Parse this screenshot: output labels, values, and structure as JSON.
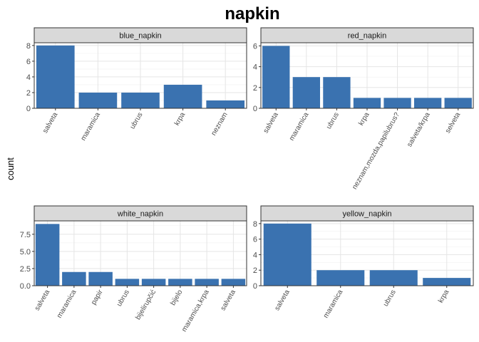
{
  "title": "napkin",
  "ylabel": "count",
  "bar_color": "#3a72b0",
  "chart_data": [
    {
      "type": "bar",
      "title": "blue_napkin",
      "categories": [
        "salveta",
        "maramica",
        "ubrus",
        "krpa",
        "neznam"
      ],
      "values": [
        8,
        2,
        2,
        3,
        1
      ],
      "ylim": [
        0,
        8.35
      ],
      "yticks": [
        0,
        2,
        4,
        6,
        8
      ],
      "ytick_labels": [
        "0",
        "2",
        "4",
        "6",
        "8"
      ]
    },
    {
      "type": "bar",
      "title": "red_napkin",
      "categories": [
        "salveta",
        "maramica",
        "ubrus",
        "krpa",
        "neznam,mozda,papilubrus?",
        "salveta/krpa",
        "selveta"
      ],
      "values": [
        6,
        3,
        3,
        1,
        1,
        1,
        1
      ],
      "ylim": [
        0,
        6.3
      ],
      "yticks": [
        0,
        2,
        4,
        6
      ],
      "ytick_labels": [
        "0",
        "2",
        "4",
        "6"
      ]
    },
    {
      "type": "bar",
      "title": "white_napkin",
      "categories": [
        "salveta",
        "maramica",
        "papir",
        "ubrus",
        "bijelirupčić",
        "bijelo",
        "maramica,krpa",
        "salveta"
      ],
      "values": [
        9,
        2,
        2,
        1,
        1,
        1,
        1,
        1
      ],
      "ylim": [
        0,
        9.45
      ],
      "yticks": [
        0,
        2.5,
        5,
        7.5
      ],
      "ytick_labels": [
        "0.0",
        "2.5",
        "5.0",
        "7.5"
      ]
    },
    {
      "type": "bar",
      "title": "yellow_napkin",
      "categories": [
        "salveta",
        "maramica",
        "ubrus",
        "krpa"
      ],
      "values": [
        8,
        2,
        2,
        1
      ],
      "ylim": [
        0,
        8.35
      ],
      "yticks": [
        0,
        2,
        4,
        6,
        8
      ],
      "ytick_labels": [
        "0",
        "2",
        "4",
        "6",
        "8"
      ]
    }
  ]
}
